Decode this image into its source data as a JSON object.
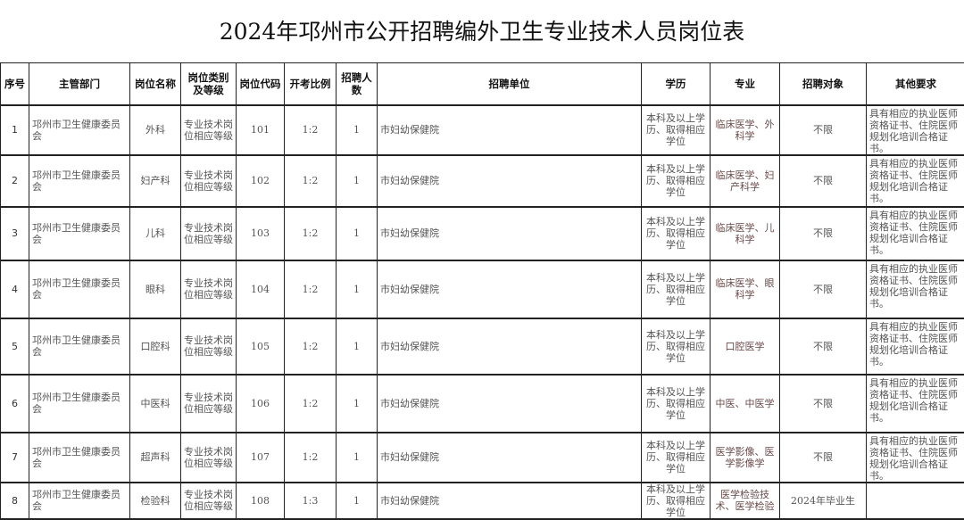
{
  "title": "2024年邛州市公开招聘编外卫生专业技术人员岗位表",
  "headers": [
    "序号",
    "主管部门",
    "岗位名称",
    "岗位类别及等级",
    "岗位代码",
    "开考比例",
    "招聘人数",
    "招聘单位",
    "学历",
    "专业",
    "招聘对象",
    "其他要求"
  ],
  "rows": [
    {
      "seq": "1",
      "dept": "邛州市卫生健康委员会",
      "post": "外科",
      "category": "专业技术岗位相应等级",
      "code": "101",
      "ratio": "1:2",
      "count": "1",
      "unit": "市妇幼保健院",
      "edu": "本科及以上学历、取得相应学位",
      "major": "临床医学、外科学",
      "target": "不限",
      "other": "具有相应的执业医师资格证书、住院医师规划化培训合格证书。"
    },
    {
      "seq": "2",
      "dept": "邛州市卫生健康委员会",
      "post": "妇产科",
      "category": "专业技术岗位相应等级",
      "code": "102",
      "ratio": "1:2",
      "count": "1",
      "unit": "市妇幼保健院",
      "edu": "本科及以上学历、取得相应学位",
      "major": "临床医学、妇产科学",
      "target": "不限",
      "other": "具有相应的执业医师资格证书、住院医师规划化培训合格证书。"
    },
    {
      "seq": "3",
      "dept": "邛州市卫生健康委员会",
      "post": "儿科",
      "category": "专业技术岗位相应等级",
      "code": "103",
      "ratio": "1:2",
      "count": "1",
      "unit": "市妇幼保健院",
      "edu": "本科及以上学历、取得相应学位",
      "major": "临床医学、儿科学",
      "target": "不限",
      "other": "具有相应的执业医师资格证书、住院医师规划化培训合格证书。"
    },
    {
      "seq": "4",
      "dept": "邛州市卫生健康委员会",
      "post": "眼科",
      "category": "专业技术岗位相应等级",
      "code": "104",
      "ratio": "1:2",
      "count": "1",
      "unit": "市妇幼保健院",
      "edu": "本科及以上学历、取得相应学位",
      "major": "临床医学、眼科学",
      "target": "不限",
      "other": "具有相应的执业医师资格证书、住院医师规划化培训合格证书。"
    },
    {
      "seq": "5",
      "dept": "邛州市卫生健康委员会",
      "post": "口腔科",
      "category": "专业技术岗位相应等级",
      "code": "105",
      "ratio": "1:2",
      "count": "1",
      "unit": "市妇幼保健院",
      "edu": "本科及以上学历、取得相应学位",
      "major": "口腔医学",
      "target": "不限",
      "other": "具有相应的执业医师资格证书、住院医师规划化培训合格证书。"
    },
    {
      "seq": "6",
      "dept": "邛州市卫生健康委员会",
      "post": "中医科",
      "category": "专业技术岗位相应等级",
      "code": "106",
      "ratio": "1:2",
      "count": "1",
      "unit": "市妇幼保健院",
      "edu": "本科及以上学历、取得相应学位",
      "major": "中医、中医学",
      "target": "不限",
      "other": "具有相应的执业医师资格证书、住院医师规划化培训合格证书。"
    },
    {
      "seq": "7",
      "dept": "邛州市卫生健康委员会",
      "post": "超声科",
      "category": "专业技术岗位相应等级",
      "code": "107",
      "ratio": "1:2",
      "count": "1",
      "unit": "市妇幼保健院",
      "edu": "本科及以上学历、取得相应学位",
      "major": "医学影像、医学影像学",
      "target": "不限",
      "other": "具有相应的执业医师资格证书、住院医师规划化培训合格证书。"
    },
    {
      "seq": "8",
      "dept": "邛州市卫生健康委员会",
      "post": "检验科",
      "category": "专业技术岗位相应等级",
      "code": "108",
      "ratio": "1:3",
      "count": "1",
      "unit": "市妇幼保健院",
      "edu": "本科及以上学历、取得相应学位",
      "major": "医学检验技术、医学检验",
      "target": "2024年毕业生",
      "other": ""
    }
  ]
}
